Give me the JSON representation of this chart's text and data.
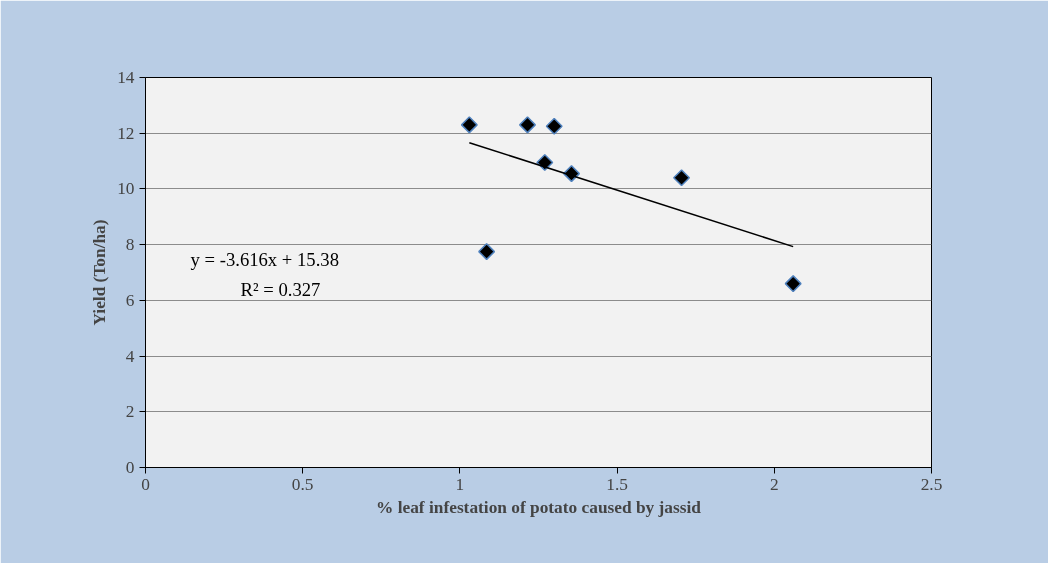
{
  "chart_data": {
    "type": "scatter",
    "xlabel": "% leaf infestation of potato caused by jassid",
    "ylabel": "Yield (Ton/ha)",
    "xlim": [
      0,
      2.5
    ],
    "xticks": [
      0,
      0.5,
      1,
      1.5,
      2,
      2.5
    ],
    "ylim": [
      0,
      14
    ],
    "yticks": [
      0,
      2,
      4,
      6,
      8,
      10,
      12,
      14
    ],
    "grid": "y",
    "series": [
      {
        "color": "#000000",
        "marker": "diamond",
        "x": [
          1.03,
          1.085,
          1.215,
          1.27,
          1.3,
          1.355,
          1.705,
          2.06
        ],
        "values": [
          12.3,
          7.75,
          12.3,
          10.95,
          12.25,
          10.55,
          10.4,
          6.6
        ]
      },
      {
        "type": "line",
        "color": "#000000",
        "x": [
          1.03,
          2.06
        ],
        "values": [
          11.66,
          7.93
        ],
        "line_style": "solid",
        "marker": "none"
      }
    ],
    "annotations": [
      "y = -3.616x + 15.38",
      "R² = 0.327"
    ]
  }
}
